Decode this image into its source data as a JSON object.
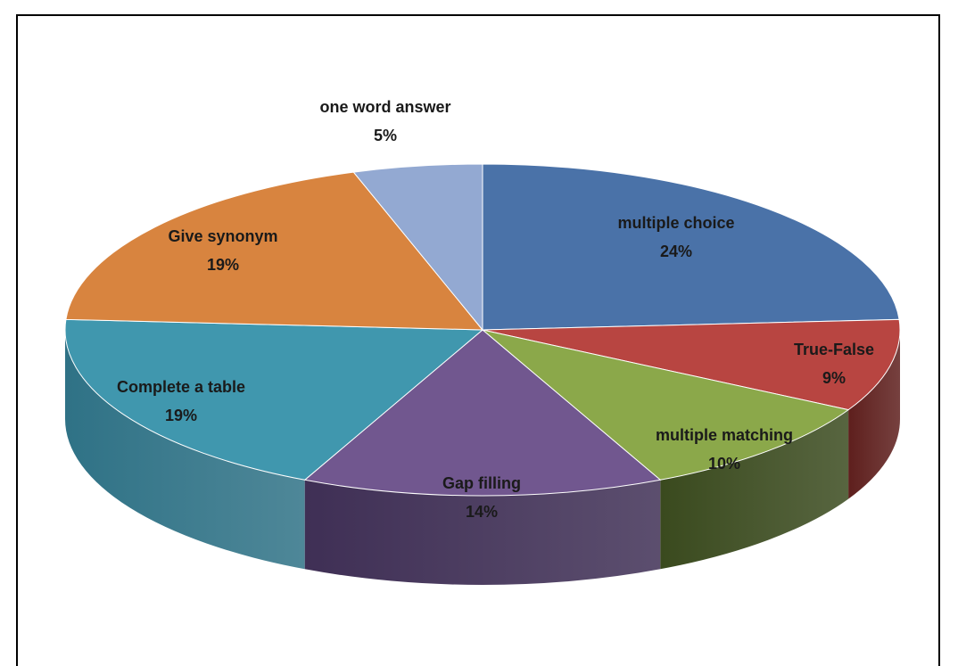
{
  "chart_data": {
    "type": "pie",
    "style": "3d-tilted",
    "slices": [
      {
        "label": "multiple choice",
        "pct_label": "24%",
        "value": 24,
        "color": "#4a72a8",
        "side_color": "#2a4a75",
        "label_color": "#1a1a1a"
      },
      {
        "label": "True-False",
        "pct_label": "9%",
        "value": 9,
        "color": "#b84541",
        "side_color": "#5e1f1d",
        "label_color": "#1a1a1a"
      },
      {
        "label": "multiple matching",
        "pct_label": "10%",
        "value": 10,
        "color": "#8ba84a",
        "side_color": "#3a4a1e",
        "label_color": "#1a1a1a"
      },
      {
        "label": "Gap filling",
        "pct_label": "14%",
        "value": 14,
        "color": "#71578f",
        "side_color": "#3f2f55",
        "label_color": "#1a1a1a"
      },
      {
        "label": "Complete a table",
        "pct_label": "19%",
        "value": 19,
        "color": "#4097ae",
        "side_color": "#2f7286",
        "label_color": "#1a1a1a"
      },
      {
        "label": "Give synonym",
        "pct_label": "19%",
        "value": 19,
        "color": "#d8843f",
        "side_color": "#9a5a26",
        "label_color": "#1a1a1a"
      },
      {
        "label": "one word answer",
        "pct_label": "5%",
        "value": 5,
        "color": "#93a9d2",
        "side_color": "#6a80a8",
        "label_color": "#1a1a1a"
      }
    ]
  }
}
